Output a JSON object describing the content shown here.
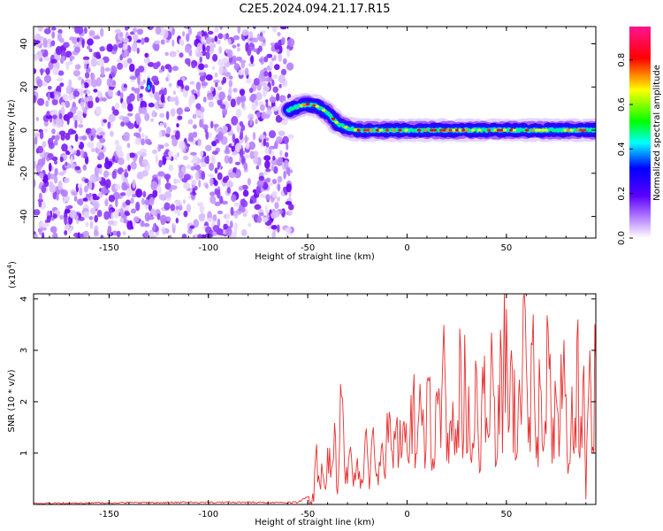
{
  "title": "C2E5.2024.094.21.17.R15",
  "chart_data": [
    {
      "type": "heatmap",
      "name": "spectrogram",
      "xlabel": "Height of straight line (km)",
      "ylabel": "Frequency (Hz)",
      "xlim": [
        -188,
        95
      ],
      "ylim": [
        -50,
        48
      ],
      "xticks": [
        -150,
        -100,
        -50,
        0,
        50
      ],
      "yticks": [
        -40,
        -20,
        0,
        20,
        40
      ],
      "noise_region_x": [
        -188,
        -58
      ],
      "ridge": {
        "x": [
          -60,
          -55,
          -50,
          -45,
          -40,
          -35,
          -30,
          -25,
          -20,
          -10,
          0,
          10,
          20,
          30,
          40,
          50,
          60,
          70,
          80,
          90,
          95
        ],
        "freq": [
          9,
          11,
          12,
          11,
          8,
          3,
          1,
          0,
          0,
          0,
          0,
          0,
          0,
          0,
          0,
          0,
          0,
          0,
          0,
          0,
          0
        ]
      },
      "colorbar": {
        "label": "Normalized spectral amplitude",
        "ticks": [
          0.0,
          0.2,
          0.4,
          0.6,
          0.8
        ],
        "range": [
          0,
          0.95
        ],
        "colors": [
          "#ffffff",
          "#9b30ff",
          "#0000ff",
          "#00ffff",
          "#00ff00",
          "#ffff00",
          "#ff0000",
          "#ff1493"
        ]
      }
    },
    {
      "type": "line",
      "name": "snr",
      "xlabel": "Height of straight line (km)",
      "ylabel": "SNR (10 * v/v)",
      "scale_label": "(x10",
      "scale_exponent": "4",
      "xlim": [
        -188,
        95
      ],
      "ylim": [
        0,
        4.1
      ],
      "xticks": [
        -150,
        -100,
        -50,
        0,
        50
      ],
      "yticks": [
        1,
        2,
        3,
        4
      ],
      "color": "#e83030",
      "series": [
        {
          "x": [
            -188,
            -120,
            -55,
            -50,
            -47,
            -46,
            -44,
            -43,
            -41,
            -40,
            -38,
            -36,
            -35,
            -33,
            -31,
            -29,
            -27,
            -25,
            -23,
            -21,
            -19,
            -17,
            -15,
            -13,
            -11,
            -9,
            -7,
            -5,
            -3,
            -1,
            1,
            3,
            5,
            7,
            9,
            11,
            13,
            15,
            17,
            19,
            21,
            23,
            25,
            27,
            28,
            29,
            30,
            31,
            33,
            35,
            37,
            39,
            41,
            43,
            45,
            47,
            48,
            49,
            51,
            53,
            55,
            57,
            59,
            61,
            63,
            65,
            67,
            69,
            71,
            73,
            75,
            77,
            79,
            81,
            83,
            85,
            86,
            87,
            89,
            90,
            91,
            92,
            93,
            95
          ],
          "y": [
            0.02,
            0.04,
            0.04,
            0.15,
            0.05,
            0.95,
            0.4,
            0.8,
            0.3,
            1.1,
            0.7,
            1.3,
            0.2,
            2.1,
            0.4,
            1.0,
            0.35,
            0.9,
            0.5,
            1.35,
            0.3,
            1.5,
            0.6,
            1.1,
            0.5,
            1.8,
            0.7,
            1.7,
            0.9,
            1.2,
            0.8,
            2.1,
            1.0,
            1.9,
            0.7,
            2.4,
            0.9,
            2.2,
            1.1,
            2.7,
            0.8,
            2.0,
            1.0,
            3.0,
            0.9,
            3.3,
            1.0,
            2.3,
            1.2,
            2.6,
            0.7,
            2.9,
            1.3,
            2.8,
            0.8,
            3.4,
            1.0,
            4.2,
            1.4,
            2.6,
            0.9,
            2.0,
            4.1,
            1.2,
            3.1,
            0.9,
            2.3,
            1.2,
            3.4,
            0.8,
            2.1,
            1.5,
            3.2,
            0.6,
            2.3,
            1.1,
            3.6,
            0.9,
            2.7,
            0.1,
            1.8,
            3.0,
            1.0,
            2.8
          ]
        }
      ]
    }
  ]
}
